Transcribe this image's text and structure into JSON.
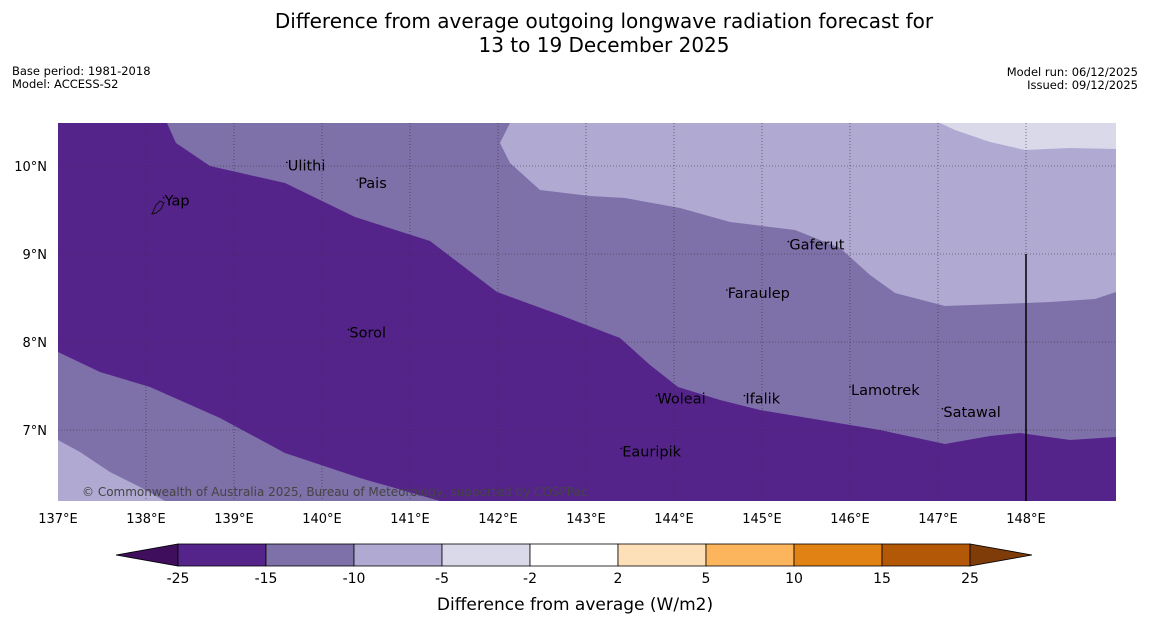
{
  "title": {
    "line1": "Difference from average outgoing longwave radiation forecast for",
    "line2": "13 to 19 December 2025"
  },
  "meta_left": {
    "base_period": "Base period: 1981-2018",
    "model": "Model: ACCESS-S2"
  },
  "meta_right": {
    "model_run": "Model run: 06/12/2025",
    "issued": "Issued: 09/12/2025"
  },
  "map": {
    "lon_range": [
      137,
      149
    ],
    "lat_range": [
      6.2,
      10.5
    ],
    "lon_ticks": [
      "137°E",
      "138°E",
      "139°E",
      "140°E",
      "141°E",
      "142°E",
      "143°E",
      "144°E",
      "145°E",
      "146°E",
      "147°E",
      "148°E"
    ],
    "lat_ticks": [
      "10°N",
      "9°N",
      "8°N",
      "7°N"
    ],
    "places": [
      {
        "name": "Yap",
        "lon": 138.2,
        "lat": 9.55
      },
      {
        "name": "Ulithi",
        "lon": 139.6,
        "lat": 9.95
      },
      {
        "name": "Pais",
        "lon": 140.4,
        "lat": 9.75
      },
      {
        "name": "Gaferut",
        "lon": 145.3,
        "lat": 9.05
      },
      {
        "name": "Faraulep",
        "lon": 144.6,
        "lat": 8.5
      },
      {
        "name": "Sorol",
        "lon": 140.3,
        "lat": 8.05
      },
      {
        "name": "Lamotrek",
        "lon": 146.0,
        "lat": 7.4
      },
      {
        "name": "Satawal",
        "lon": 147.05,
        "lat": 7.15
      },
      {
        "name": "Woleai",
        "lon": 143.8,
        "lat": 7.3
      },
      {
        "name": "Ifalik",
        "lon": 144.8,
        "lat": 7.3
      },
      {
        "name": "Eauripik",
        "lon": 143.4,
        "lat": 6.7
      }
    ],
    "copyright": "© Commonwealth of Australia 2025, Bureau of Meteorology, supported by COSPPac"
  },
  "colorbar": {
    "label": "Difference from average (W/m2)",
    "ticks": [
      "-25",
      "-15",
      "-10",
      "-5",
      "-2",
      "2",
      "5",
      "10",
      "15",
      "25"
    ],
    "colors": {
      "under": "#3f0f5e",
      "bins": [
        "#55248a",
        "#7e70a9",
        "#b0a9d2",
        "#d9d9ea",
        "#ffffff",
        "#fde0b8",
        "#fcb55c",
        "#e08214",
        "#b35806"
      ],
      "over": "#7f3b08"
    }
  }
}
